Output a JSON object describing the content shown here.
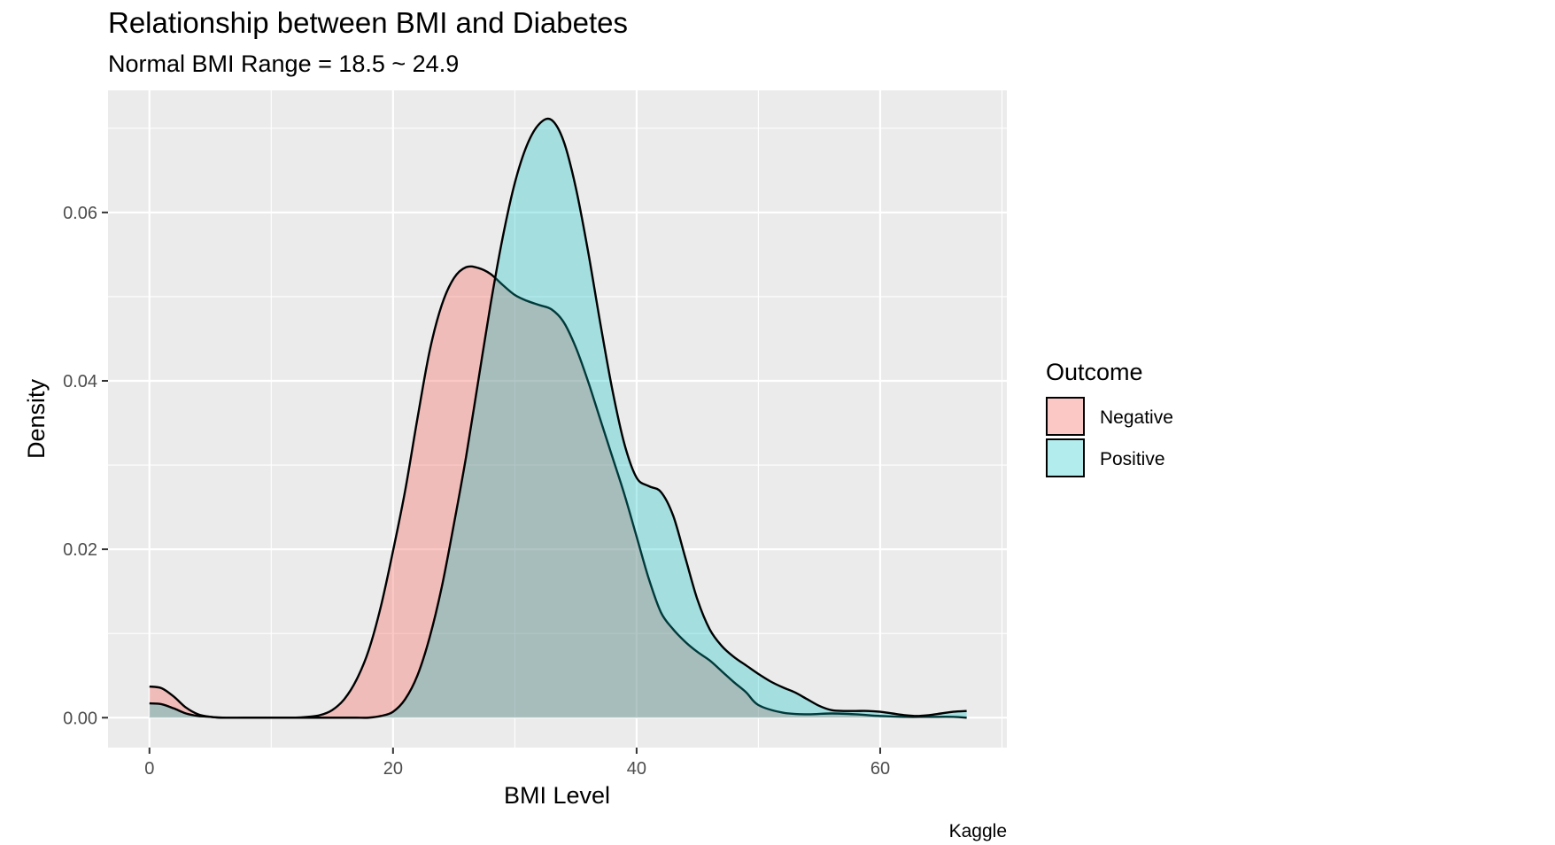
{
  "chart_data": {
    "type": "area",
    "title": "Relationship between BMI and Diabetes",
    "subtitle": "Normal BMI Range = 18.5 ~ 24.9",
    "xlabel": "BMI Level",
    "ylabel": "Density",
    "caption": "Kaggle",
    "xlim": [
      -3.4,
      70.4
    ],
    "ylim": [
      -0.00355,
      0.0745
    ],
    "x_ticks": [
      0,
      20,
      40,
      60
    ],
    "x_tick_labels": [
      "0",
      "20",
      "40",
      "60"
    ],
    "y_ticks": [
      0,
      0.02,
      0.04,
      0.06
    ],
    "y_tick_labels": [
      "0.00",
      "0.02",
      "0.04",
      "0.06"
    ],
    "grid": true,
    "legend": {
      "title": "Outcome",
      "position": "right"
    },
    "series": [
      {
        "name": "Negative",
        "fill": "#F8766D",
        "x": [
          0,
          1,
          2,
          3,
          4,
          5,
          6,
          8,
          10,
          12,
          13,
          14,
          15,
          16,
          17,
          18,
          19,
          20,
          21,
          22,
          23,
          24,
          25,
          26,
          27,
          28,
          29,
          30,
          31,
          32,
          33,
          34,
          35,
          36,
          37,
          38,
          39,
          40,
          41,
          42,
          43,
          44,
          45,
          46,
          47,
          48,
          49,
          50,
          52,
          54,
          56,
          58,
          60,
          62,
          64,
          66,
          67.1
        ],
        "y": [
          0.0037,
          0.0035,
          0.0025,
          0.0012,
          0.0004,
          0.0001,
          0.0,
          0.0,
          0.0,
          0.0,
          0.0001,
          0.0003,
          0.0009,
          0.0022,
          0.0045,
          0.008,
          0.0132,
          0.0198,
          0.027,
          0.0355,
          0.0435,
          0.049,
          0.0522,
          0.0535,
          0.0534,
          0.0527,
          0.0514,
          0.0502,
          0.0495,
          0.049,
          0.0485,
          0.047,
          0.044,
          0.04,
          0.0355,
          0.031,
          0.0265,
          0.0215,
          0.0165,
          0.0125,
          0.0105,
          0.009,
          0.0078,
          0.0068,
          0.0055,
          0.0042,
          0.003,
          0.0015,
          0.0006,
          0.0004,
          0.0005,
          0.0004,
          0.0002,
          0.0001,
          0.0001,
          0.0001,
          0.0
        ]
      },
      {
        "name": "Positive",
        "fill": "#00BFC4",
        "x": [
          0,
          1,
          2,
          3,
          4,
          5,
          6,
          8,
          10,
          12,
          14,
          16,
          17,
          18,
          19,
          20,
          21,
          22,
          23,
          24,
          25,
          26,
          27,
          28,
          29,
          30,
          31,
          32,
          33,
          34,
          35,
          36,
          37,
          38,
          39,
          40,
          41,
          42,
          43,
          44,
          45,
          46,
          47,
          48,
          49,
          50,
          51,
          52,
          53,
          54,
          55,
          56,
          57,
          58,
          59,
          60,
          61,
          62,
          63,
          64,
          65,
          66,
          67.1
        ],
        "y": [
          0.0017,
          0.0016,
          0.0011,
          0.0005,
          0.0002,
          0.0001,
          0.0,
          0.0,
          0.0,
          0.0,
          0.0,
          0.0,
          0.0,
          0.0,
          0.0002,
          0.0007,
          0.0022,
          0.005,
          0.0095,
          0.0155,
          0.023,
          0.031,
          0.04,
          0.049,
          0.057,
          0.0635,
          0.068,
          0.0705,
          0.071,
          0.0685,
          0.063,
          0.0555,
          0.047,
          0.039,
          0.0325,
          0.0285,
          0.0275,
          0.0268,
          0.024,
          0.019,
          0.014,
          0.0105,
          0.0085,
          0.0072,
          0.0062,
          0.0052,
          0.0043,
          0.0036,
          0.003,
          0.0022,
          0.0014,
          0.0009,
          0.0008,
          0.0008,
          0.0008,
          0.0007,
          0.0005,
          0.0003,
          0.0002,
          0.0003,
          0.0005,
          0.0007,
          0.0008
        ]
      }
    ]
  }
}
